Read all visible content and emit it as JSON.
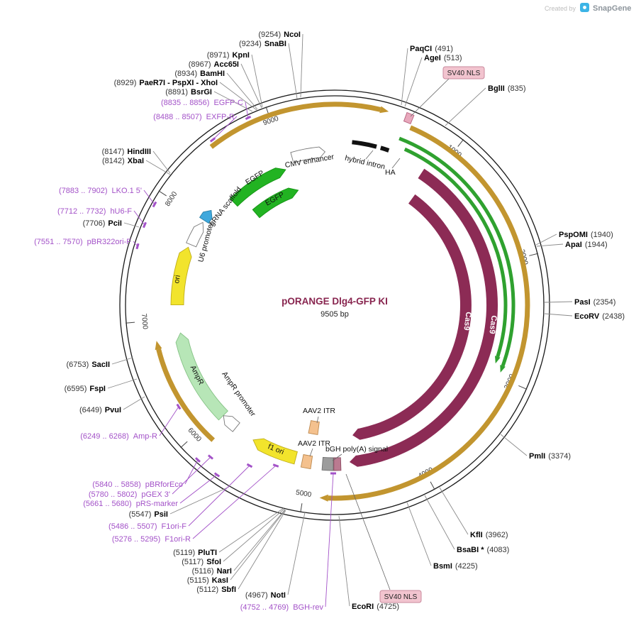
{
  "brand": {
    "created_by": "Created by",
    "name": "SnapGene"
  },
  "plasmid": {
    "title": "pORANGE Dlg4-GFP KI",
    "size": "9505 bp",
    "length_bp": 9505
  },
  "colors": {
    "gold_arc": "#C2952F",
    "green_arc": "#2FA12F",
    "primer": "#A352C8",
    "cas9": "#8C2B55",
    "egfp": "#22B322",
    "yellow": "#F2E42C",
    "pale_green": "#B7E6B7",
    "nls_pink": "#F2C4CF"
  },
  "ticks": [
    {
      "label": "1000",
      "bp": 1000
    },
    {
      "label": "2000",
      "bp": 2000
    },
    {
      "label": "3000",
      "bp": 3000
    },
    {
      "label": "4000",
      "bp": 4000
    },
    {
      "label": "5000",
      "bp": 5000
    },
    {
      "label": "6000",
      "bp": 6000
    },
    {
      "label": "7000",
      "bp": 7000
    },
    {
      "label": "8000",
      "bp": 8000
    },
    {
      "label": "9000",
      "bp": 9000
    }
  ],
  "enzymes": [
    {
      "name": "NcoI",
      "pos": "(9254)",
      "bp": 9254
    },
    {
      "name": "SnaBI",
      "pos": "(9234)",
      "bp": 9234
    },
    {
      "name": "KpnI",
      "pos": "(8971)",
      "bp": 8971
    },
    {
      "name": "Acc65I",
      "pos": "(8967)",
      "bp": 8967
    },
    {
      "name": "BamHI",
      "pos": "(8934)",
      "bp": 8934
    },
    {
      "name": "PaeR7I - PspXI - XhoI",
      "pos": "(8929)",
      "bp": 8929
    },
    {
      "name": "BsrGI",
      "pos": "(8891)",
      "bp": 8891
    },
    {
      "name": "HindIII",
      "pos": "(8147)",
      "bp": 8147
    },
    {
      "name": "XbaI",
      "pos": "(8142)",
      "bp": 8142
    },
    {
      "name": "PciI",
      "pos": "(7706)",
      "bp": 7706
    },
    {
      "name": "SacII",
      "pos": "(6753)",
      "bp": 6753
    },
    {
      "name": "FspI",
      "pos": "(6595)",
      "bp": 6595
    },
    {
      "name": "PvuI",
      "pos": "(6449)",
      "bp": 6449
    },
    {
      "name": "PsiI",
      "pos": "(5547)",
      "bp": 5547
    },
    {
      "name": "PluTI",
      "pos": "(5119)",
      "bp": 5119
    },
    {
      "name": "SfoI",
      "pos": "(5117)",
      "bp": 5117
    },
    {
      "name": "NarI",
      "pos": "(5116)",
      "bp": 5116
    },
    {
      "name": "KasI",
      "pos": "(5115)",
      "bp": 5115
    },
    {
      "name": "SbfI",
      "pos": "(5112)",
      "bp": 5112
    },
    {
      "name": "NotI",
      "pos": "(4967)",
      "bp": 4967
    },
    {
      "name": "PaqCI",
      "pos": "(491)",
      "bp": 491
    },
    {
      "name": "AgeI",
      "pos": "(513)",
      "bp": 513
    },
    {
      "name": "BglII",
      "pos": "(835)",
      "bp": 835
    },
    {
      "name": "PspOMI",
      "pos": "(1940)",
      "bp": 1940
    },
    {
      "name": "ApaI",
      "pos": "(1944)",
      "bp": 1944
    },
    {
      "name": "PasI",
      "pos": "(2354)",
      "bp": 2354
    },
    {
      "name": "EcoRV",
      "pos": "(2438)",
      "bp": 2438
    },
    {
      "name": "PmlI",
      "pos": "(3374)",
      "bp": 3374
    },
    {
      "name": "KflI",
      "pos": "(3962)",
      "bp": 3962
    },
    {
      "name": "BsaBI *",
      "pos": "(4083)",
      "bp": 4083
    },
    {
      "name": "BsmI",
      "pos": "(4225)",
      "bp": 4225
    },
    {
      "name": "EcoRI",
      "pos": "(4725)",
      "bp": 4725
    }
  ],
  "primers": [
    {
      "name": "EGFP-C",
      "range": "(8835 .. 8856)"
    },
    {
      "name": "EXFP-R",
      "range": "(8488 .. 8507)"
    },
    {
      "name": "LKO.1 5'",
      "range": "(7883 .. 7902)"
    },
    {
      "name": "hU6-F",
      "range": "(7712 .. 7732)"
    },
    {
      "name": "pBR322ori-F",
      "range": "(7551 .. 7570)"
    },
    {
      "name": "Amp-R",
      "range": "(6249 .. 6268)"
    },
    {
      "name": "pBRforEco",
      "range": "(5840 .. 5858)"
    },
    {
      "name": "pGEX 3'",
      "range": "(5780 .. 5802)"
    },
    {
      "name": "pRS-marker",
      "range": "(5661 .. 5680)"
    },
    {
      "name": "F1ori-F",
      "range": "(5486 .. 5507)"
    },
    {
      "name": "F1ori-R",
      "range": "(5276 .. 5295)"
    },
    {
      "name": "BGH-rev",
      "range": "(4752 .. 4769)"
    }
  ],
  "features": [
    {
      "name": "CMV enhancer",
      "color": "#FFFFFF"
    },
    {
      "name": "hybrid intron",
      "color": "#111111"
    },
    {
      "name": "HA",
      "color": "#111111"
    },
    {
      "name": "EGFP",
      "color": "#22B322"
    },
    {
      "name": "EGFP",
      "color": "#22B322"
    },
    {
      "name": "gRNA scaffold",
      "color": "#3FA8DC"
    },
    {
      "name": "U6 promoter",
      "color": "#FFFFFF"
    },
    {
      "name": "ori",
      "color": "#F2E42C"
    },
    {
      "name": "AmpR",
      "color": "#B7E6B7"
    },
    {
      "name": "AmpR promoter",
      "color": "#FFFFFF"
    },
    {
      "name": "f1 ori",
      "color": "#F2E42C"
    },
    {
      "name": "AAV2 ITR",
      "color": "#F4C18E"
    },
    {
      "name": "AAV2 ITR",
      "color": "#F4C18E"
    },
    {
      "name": "bGH poly(A) signal",
      "color": "#9C9C9C"
    },
    {
      "name": "SV40 NLS",
      "color": "#E8A8BC"
    },
    {
      "name": "SV40 NLS",
      "color": "#BA7A90"
    },
    {
      "name": "Cas9",
      "color": "#8C2B55"
    },
    {
      "name": "Cas9",
      "color": "#8C2B55"
    }
  ]
}
